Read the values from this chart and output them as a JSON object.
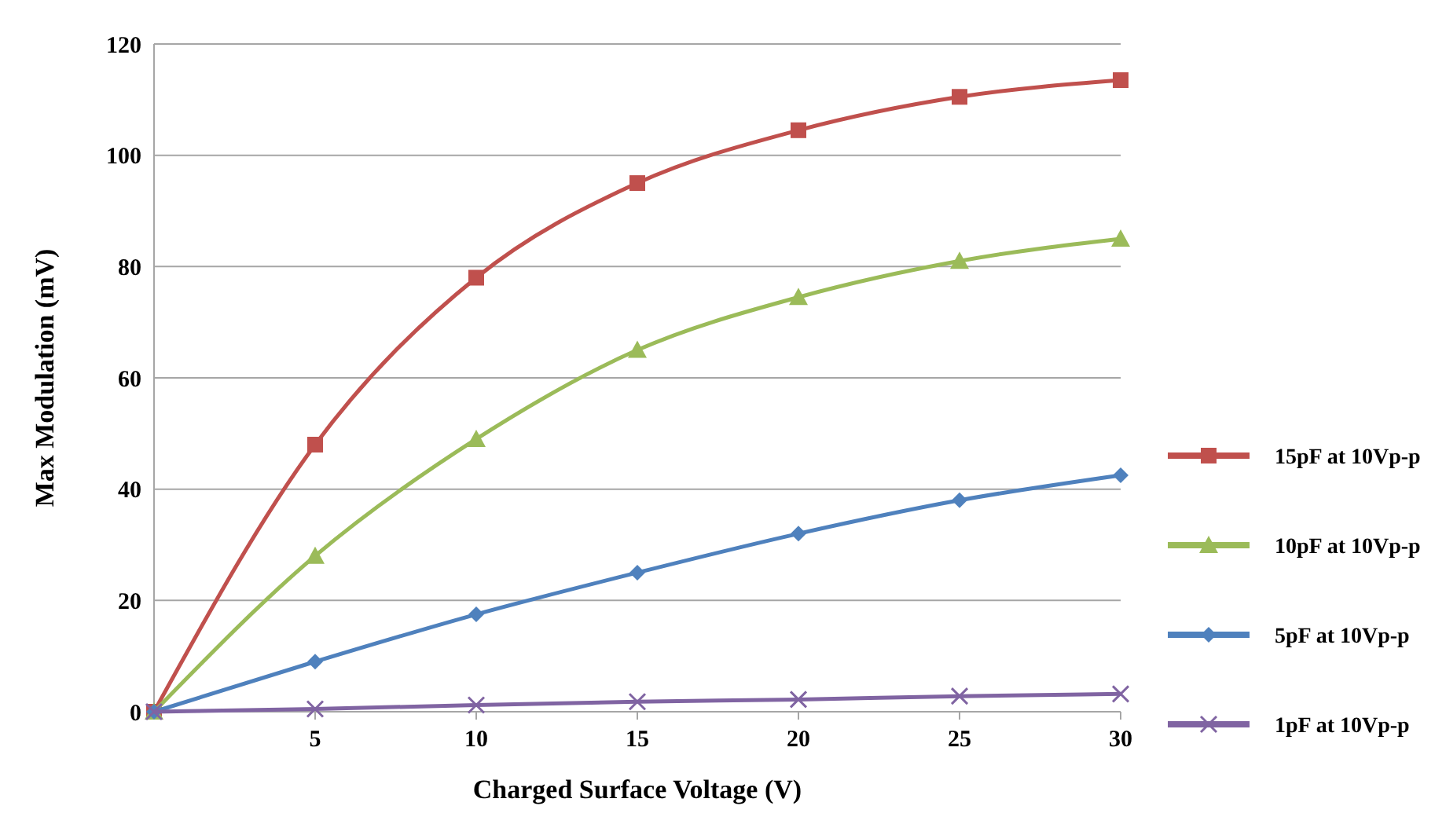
{
  "chart_data": {
    "type": "line",
    "xlabel": "Charged Surface Voltage (V)",
    "ylabel": "Max Modulation (mV)",
    "x": [
      0,
      5,
      10,
      15,
      20,
      25,
      30
    ],
    "xlim": [
      0,
      30
    ],
    "xticks": [
      5,
      10,
      15,
      20,
      25,
      30
    ],
    "ylim": [
      0,
      120
    ],
    "yticks": [
      0,
      20,
      40,
      60,
      80,
      100,
      120
    ],
    "grid": "y",
    "legend": "right",
    "series": [
      {
        "name": "15pF at 10Vp-p",
        "color": "#c0504d",
        "marker": "square",
        "values": [
          0,
          48,
          78,
          95,
          104.5,
          110.5,
          113.5
        ]
      },
      {
        "name": "10pF at 10Vp-p",
        "color": "#9bbb59",
        "marker": "triangle",
        "values": [
          0,
          28,
          49,
          65,
          74.5,
          81,
          85
        ]
      },
      {
        "name": "5pF at 10Vp-p",
        "color": "#4f81bd",
        "marker": "diamond",
        "values": [
          0,
          9,
          17.5,
          25,
          32,
          38,
          42.5
        ]
      },
      {
        "name": "1pF at 10Vp-p",
        "color": "#8064a2",
        "marker": "cross",
        "values": [
          0,
          0.5,
          1.2,
          1.8,
          2.2,
          2.8,
          3.2
        ]
      }
    ]
  }
}
